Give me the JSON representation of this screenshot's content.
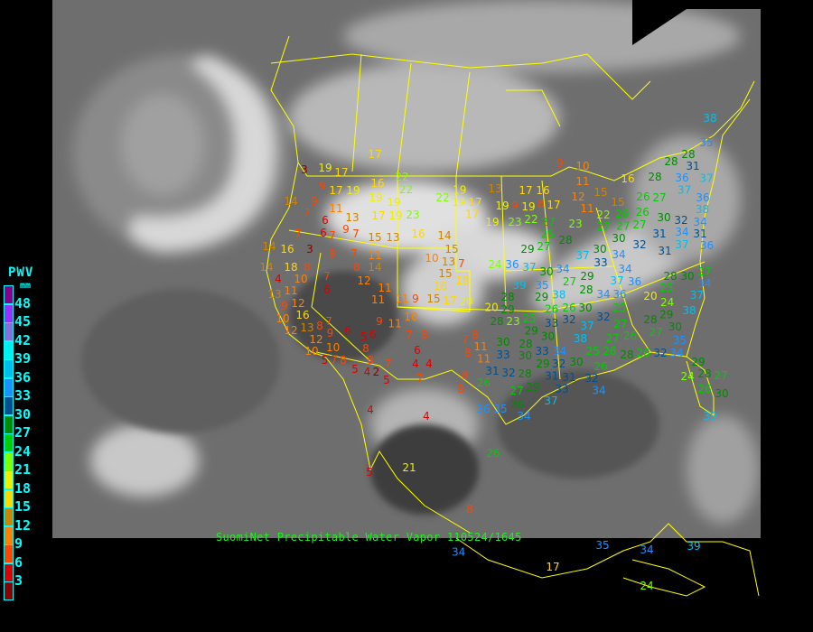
{
  "caption": "SuomiNet Precipitable Water Vapor 110524/1645",
  "legend": {
    "title": "PWV",
    "unit": "mm",
    "labels": [
      "48",
      "45",
      "42",
      "39",
      "36",
      "33",
      "30",
      "27",
      "24",
      "21",
      "18",
      "15",
      "12",
      "9",
      "6",
      "3"
    ],
    "colors": [
      "#8b008b",
      "#9a30ff",
      "#8470d8",
      "#00eeee",
      "#00bfee",
      "#1e90ff",
      "#00508f",
      "#008b00",
      "#00cd00",
      "#7fff00",
      "#eeee00",
      "#ffd700",
      "#cd8500",
      "#ff8000",
      "#ff4500",
      "#dd0000",
      "#8b0000"
    ]
  },
  "stations": [
    17,
    3,
    19,
    17,
    22,
    9,
    17,
    19,
    16,
    22,
    14,
    9,
    19,
    19,
    22,
    19,
    17,
    7,
    11,
    6,
    6,
    13,
    17,
    19,
    23,
    7,
    7,
    9,
    7,
    15,
    13,
    16,
    14,
    14,
    16,
    3,
    8,
    7,
    11,
    15,
    10,
    13,
    7,
    14,
    18,
    8,
    14,
    8,
    15,
    4,
    10,
    7,
    12,
    11,
    16,
    18,
    11,
    6,
    11,
    13,
    12,
    11,
    9,
    15,
    17,
    20,
    9,
    16,
    10,
    10,
    13,
    8,
    7,
    9,
    9,
    11,
    12,
    12,
    10,
    6,
    5,
    6,
    7,
    8,
    7,
    8,
    11,
    6,
    8,
    8,
    10,
    5,
    7,
    8,
    7,
    4,
    4,
    8,
    8,
    8,
    5,
    4,
    2,
    5,
    7,
    4,
    4,
    21,
    5,
    8,
    26,
    17,
    24,
    35,
    34,
    34,
    39,
    38,
    35,
    28,
    28,
    31,
    9,
    10,
    28,
    36,
    37,
    37,
    13,
    17,
    16,
    11,
    16,
    19,
    17,
    12,
    15,
    15,
    19,
    9,
    19,
    8,
    17,
    26,
    27,
    36,
    38,
    22,
    11,
    22,
    26,
    27,
    19,
    23,
    27,
    25,
    23,
    27,
    30,
    27,
    26,
    30,
    32,
    34,
    31,
    27,
    28,
    31,
    34,
    37,
    36,
    29,
    37,
    30,
    32,
    31,
    34,
    33,
    24,
    36,
    37,
    30,
    34,
    34,
    37,
    36,
    27,
    29,
    39,
    35,
    38,
    29,
    28,
    34,
    36,
    28,
    28,
    30,
    25,
    27,
    34,
    37,
    20,
    29,
    26,
    26,
    20,
    24,
    25,
    30,
    32,
    33,
    29,
    38,
    23,
    25,
    28,
    29,
    30,
    32,
    37,
    38,
    27,
    26,
    27,
    28,
    27,
    30,
    28,
    33,
    34,
    30,
    33,
    11,
    25,
    26,
    28,
    26,
    32,
    34,
    35,
    30,
    29,
    32,
    30,
    26,
    31,
    32,
    28,
    31,
    31,
    32,
    26,
    27,
    29,
    33,
    34,
    26,
    30,
    36,
    35,
    30,
    34,
    37,
    39,
    29,
    28,
    24,
    27
  ]
}
